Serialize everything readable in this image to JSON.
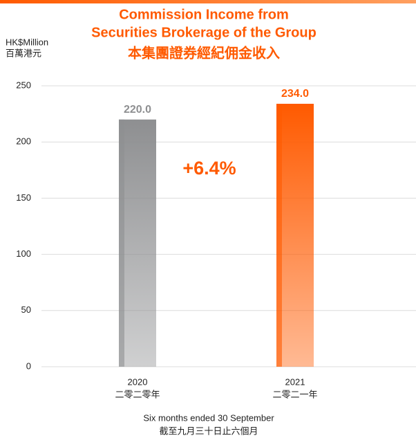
{
  "chart_data": {
    "type": "bar",
    "title": [
      "Commission Income from",
      "Securities Brokerage of the Group"
    ],
    "title_zh": "本集團證券經紀佣金收入",
    "y_label": [
      "HK$Million",
      "百萬港元"
    ],
    "categories": [
      "2020",
      "2021"
    ],
    "categories_zh": [
      "二零二零年",
      "二零二一年"
    ],
    "values": [
      220,
      234
    ],
    "value_labels": [
      "220.0",
      "234.0"
    ],
    "colors": [
      "#8e8f91",
      "#ff5a00"
    ],
    "annotation": "+6.4%",
    "x_label": [
      "Six months ended 30 September",
      "截至九月三十日止六個月"
    ],
    "ylim": [
      0,
      250
    ],
    "yticks": [
      0,
      50,
      100,
      150,
      200,
      250
    ],
    "grid": true
  }
}
